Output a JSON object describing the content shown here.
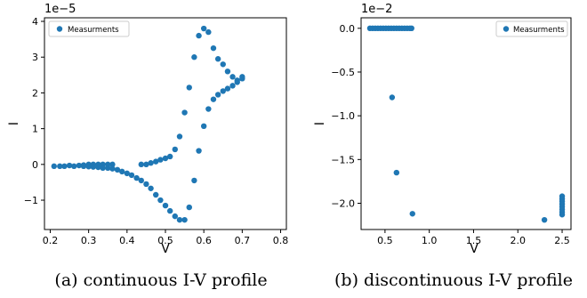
{
  "chart_data": [
    {
      "type": "scatter",
      "caption": "(a) continuous I-V profile",
      "xlabel": "V",
      "ylabel": "I",
      "offset_text": "1e−5",
      "xlim": [
        0.185,
        0.815
      ],
      "ylim": [
        -1.82,
        4.1
      ],
      "xticks": [
        0.2,
        0.3,
        0.4,
        0.5,
        0.6,
        0.7,
        0.8
      ],
      "xtick_labels": [
        "0.2",
        "0.3",
        "0.4",
        "0.5",
        "0.6",
        "0.7",
        "0.8"
      ],
      "yticks": [
        -1,
        0,
        1,
        2,
        3,
        4
      ],
      "ytick_labels": [
        "−1",
        "0",
        "1",
        "2",
        "3",
        "4"
      ],
      "grid": false,
      "legend_position": "top-left",
      "color": "#1f77b4",
      "series": [
        {
          "name": "Measurments",
          "points": [
            [
              0.21,
              -0.05
            ],
            [
              0.225,
              -0.05
            ],
            [
              0.237,
              -0.05
            ],
            [
              0.25,
              -0.03
            ],
            [
              0.262,
              -0.05
            ],
            [
              0.275,
              -0.03
            ],
            [
              0.287,
              -0.02
            ],
            [
              0.3,
              0.0
            ],
            [
              0.312,
              0.0
            ],
            [
              0.325,
              0.0
            ],
            [
              0.337,
              0.0
            ],
            [
              0.35,
              0.0
            ],
            [
              0.362,
              0.0
            ],
            [
              0.437,
              0.0
            ],
            [
              0.45,
              0.0
            ],
            [
              0.462,
              0.04
            ],
            [
              0.475,
              0.08
            ],
            [
              0.487,
              0.13
            ],
            [
              0.5,
              0.17
            ],
            [
              0.512,
              0.22
            ],
            [
              0.525,
              0.42
            ],
            [
              0.537,
              0.78
            ],
            [
              0.55,
              1.45
            ],
            [
              0.562,
              2.15
            ],
            [
              0.575,
              3.0
            ],
            [
              0.587,
              3.6
            ],
            [
              0.6,
              3.8
            ],
            [
              0.612,
              3.7
            ],
            [
              0.625,
              3.25
            ],
            [
              0.637,
              2.95
            ],
            [
              0.65,
              2.8
            ],
            [
              0.662,
              2.6
            ],
            [
              0.675,
              2.45
            ],
            [
              0.687,
              2.35
            ],
            [
              0.7,
              2.45
            ],
            [
              0.287,
              -0.05
            ],
            [
              0.3,
              -0.06
            ],
            [
              0.312,
              -0.07
            ],
            [
              0.325,
              -0.08
            ],
            [
              0.337,
              -0.1
            ],
            [
              0.35,
              -0.1
            ],
            [
              0.362,
              -0.12
            ],
            [
              0.375,
              -0.15
            ],
            [
              0.387,
              -0.2
            ],
            [
              0.4,
              -0.25
            ],
            [
              0.412,
              -0.3
            ],
            [
              0.425,
              -0.38
            ],
            [
              0.437,
              -0.45
            ],
            [
              0.45,
              -0.55
            ],
            [
              0.462,
              -0.67
            ],
            [
              0.475,
              -0.85
            ],
            [
              0.487,
              -1.0
            ],
            [
              0.5,
              -1.15
            ],
            [
              0.512,
              -1.3
            ],
            [
              0.525,
              -1.45
            ],
            [
              0.537,
              -1.55
            ],
            [
              0.55,
              -1.55
            ],
            [
              0.562,
              -1.2
            ],
            [
              0.575,
              -0.45
            ],
            [
              0.587,
              0.38
            ],
            [
              0.6,
              1.07
            ],
            [
              0.612,
              1.55
            ],
            [
              0.625,
              1.82
            ],
            [
              0.637,
              1.95
            ],
            [
              0.65,
              2.05
            ],
            [
              0.662,
              2.12
            ],
            [
              0.675,
              2.2
            ],
            [
              0.687,
              2.3
            ],
            [
              0.7,
              2.4
            ]
          ]
        }
      ]
    },
    {
      "type": "scatter",
      "caption": "(b) discontinuous I-V profile",
      "xlabel": "V",
      "ylabel": "I",
      "offset_text": "1e−2",
      "xlim": [
        0.23,
        2.6
      ],
      "ylim": [
        -2.3,
        0.12
      ],
      "xticks": [
        0.5,
        1.0,
        1.5,
        2.0,
        2.5
      ],
      "xtick_labels": [
        "0.5",
        "1.0",
        "1.5",
        "2.0",
        "2.5"
      ],
      "yticks": [
        0.0,
        -0.5,
        -1.0,
        -1.5,
        -2.0
      ],
      "ytick_labels": [
        "0.0",
        "−0.5",
        "−1.0",
        "−1.5",
        "−2.0"
      ],
      "grid": false,
      "legend_position": "top-right",
      "color": "#1f77b4",
      "series": [
        {
          "name": "Measurments",
          "points": [
            [
              0.33,
              0.0
            ],
            [
              0.36,
              0.0
            ],
            [
              0.39,
              0.0
            ],
            [
              0.42,
              0.0
            ],
            [
              0.45,
              0.0
            ],
            [
              0.48,
              0.0
            ],
            [
              0.51,
              0.0
            ],
            [
              0.54,
              0.0
            ],
            [
              0.57,
              0.0
            ],
            [
              0.6,
              0.0
            ],
            [
              0.63,
              0.0
            ],
            [
              0.66,
              0.0
            ],
            [
              0.69,
              0.0
            ],
            [
              0.72,
              0.0
            ],
            [
              0.75,
              0.0
            ],
            [
              0.78,
              0.0
            ],
            [
              0.8,
              0.0
            ],
            [
              0.58,
              -0.79
            ],
            [
              0.63,
              -1.65
            ],
            [
              0.81,
              -2.12
            ],
            [
              2.3,
              -2.19
            ],
            [
              2.5,
              -1.92
            ],
            [
              2.5,
              -1.95
            ],
            [
              2.5,
              -1.98
            ],
            [
              2.5,
              -2.01
            ],
            [
              2.5,
              -2.04
            ],
            [
              2.5,
              -2.07
            ],
            [
              2.5,
              -2.1
            ],
            [
              2.5,
              -2.13
            ]
          ]
        }
      ]
    }
  ]
}
